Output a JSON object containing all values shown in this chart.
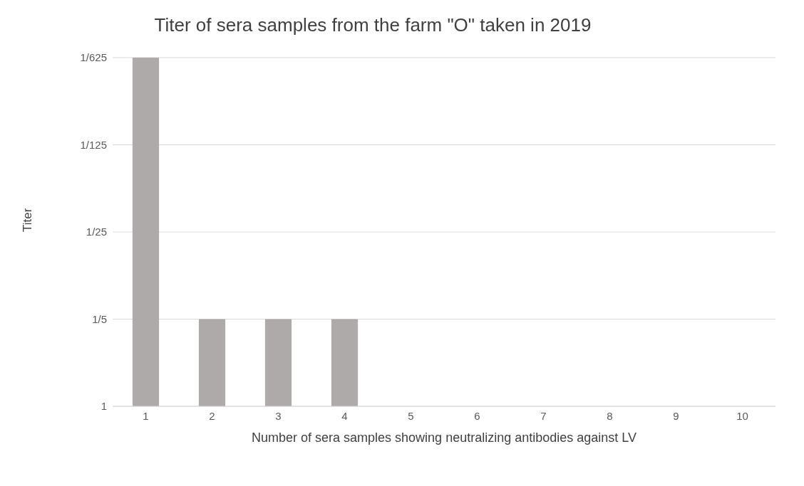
{
  "chart_data": {
    "type": "bar",
    "title": "Titer of sera samples from the farm \"O\" taken in 2019",
    "xlabel": "Number of sera samples showing neutralizing antibodies against LV",
    "ylabel": "Titer",
    "categories": [
      "1",
      "2",
      "3",
      "4",
      "5",
      "6",
      "7",
      "8",
      "9",
      "10"
    ],
    "base": [
      1,
      1,
      1,
      1,
      null,
      null,
      null,
      null,
      null,
      null
    ],
    "values": [
      -0.9984,
      -0.8,
      -0.8,
      -0.8,
      null,
      null,
      null,
      null,
      null,
      null
    ],
    "color": "#aeaaa9",
    "log": "y",
    "ylim": [
      1,
      0.0016
    ],
    "yticks": [
      1,
      {
        "value": 0.2,
        "label": "1/5"
      },
      {
        "value": 0.04,
        "label": "1/25"
      },
      {
        "value": 0.008,
        "label": "1/125"
      },
      {
        "value": 0.0016,
        "label": "1/625"
      }
    ],
    "grid": "y"
  }
}
